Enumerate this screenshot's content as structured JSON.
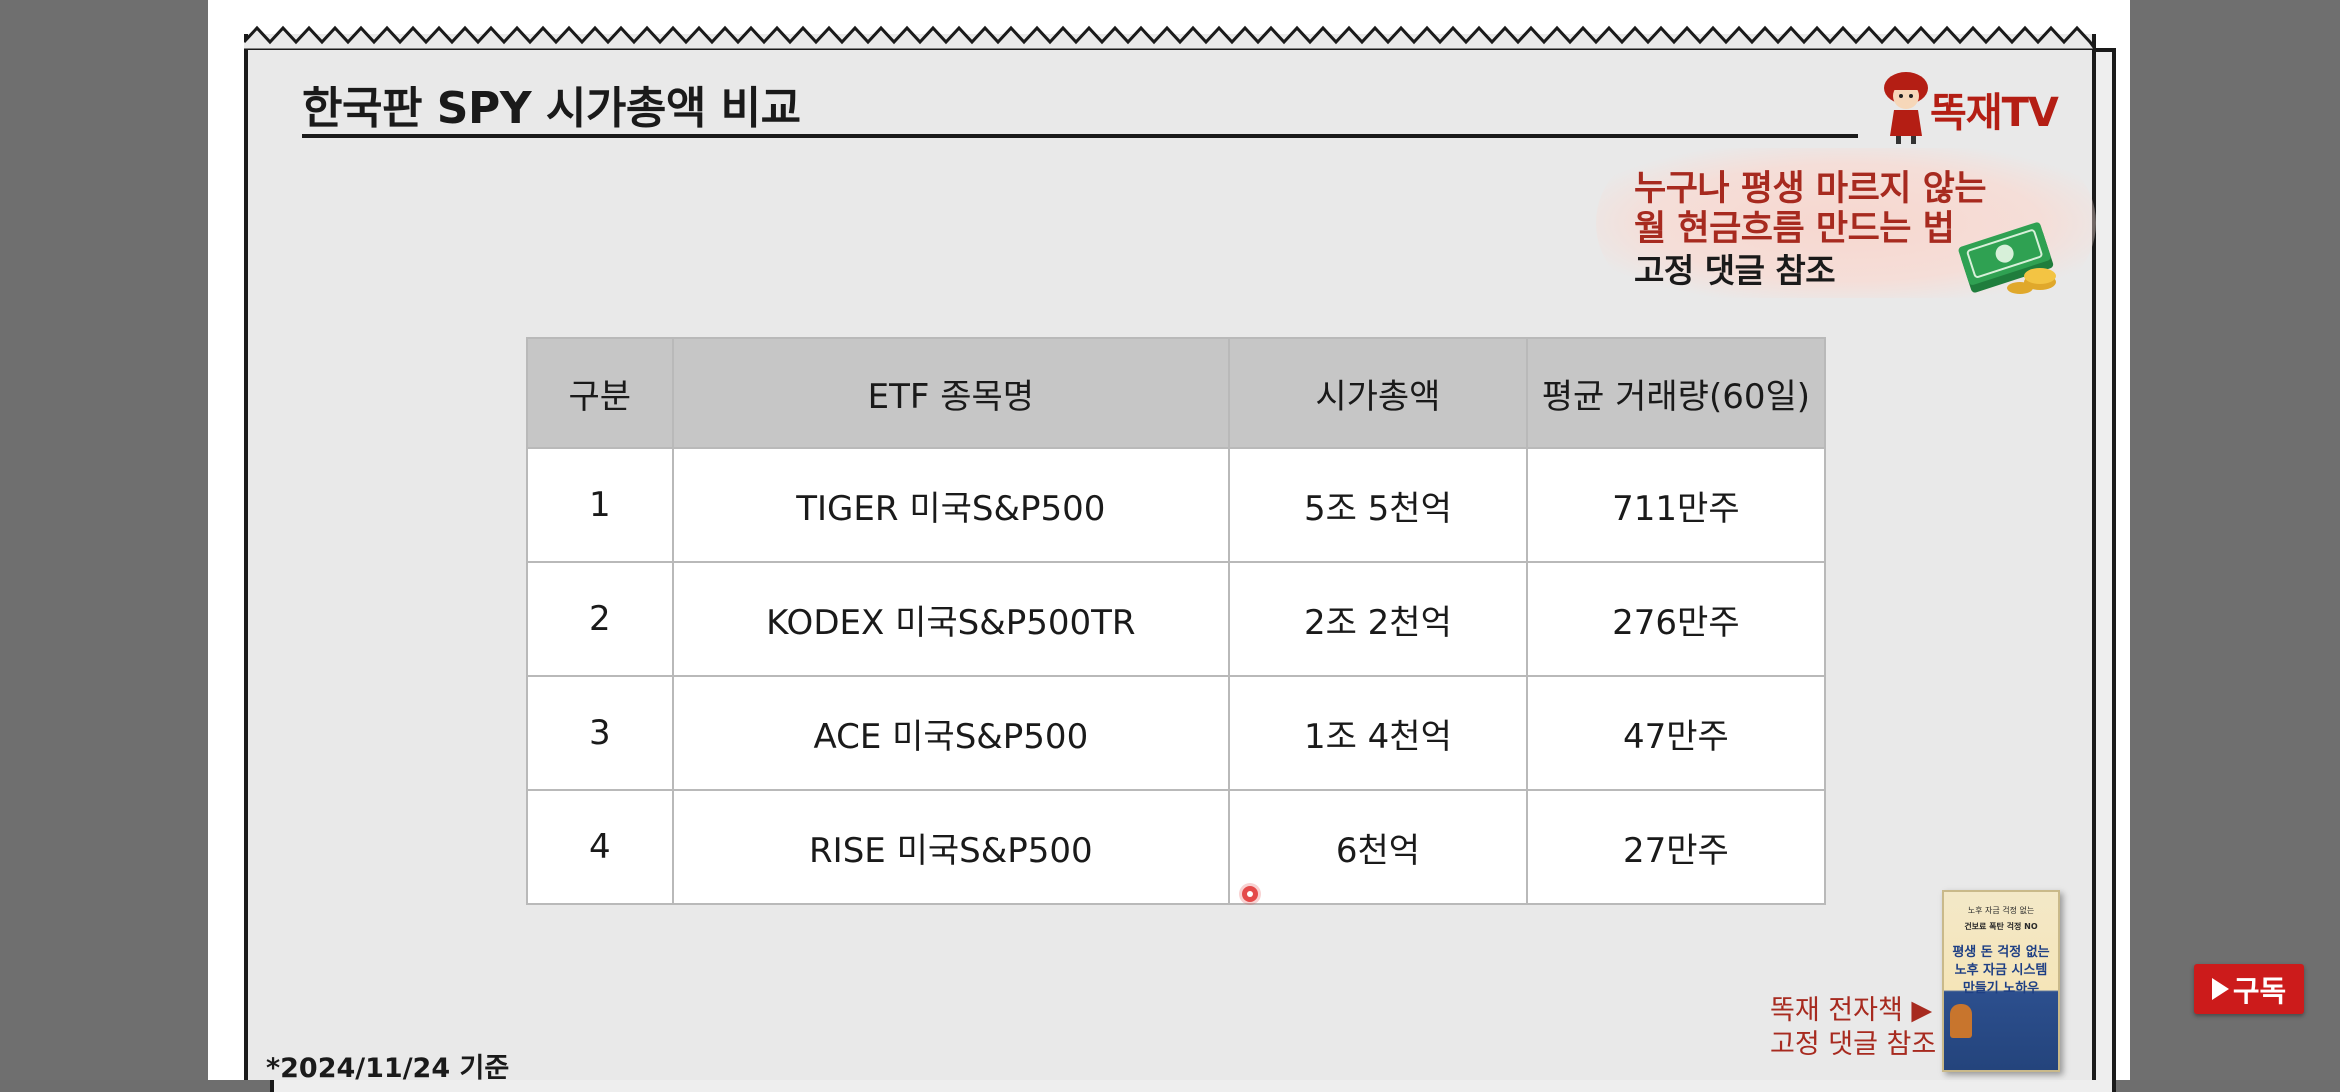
{
  "slide": {
    "title": "한국판 SPY 시가총액 비교",
    "logo_text": "똑재TV",
    "promo": {
      "line1": "누구나 평생 마르지 않는",
      "line2": "월 현금흐름 만드는 법",
      "line3": "고정 댓글 참조"
    },
    "table": {
      "headers": [
        "구분",
        "ETF 종목명",
        "시가총액",
        "평균 거래량(60일)"
      ],
      "rows": [
        [
          "1",
          "TIGER 미국S&P500",
          "5조 5천억",
          "711만주"
        ],
        [
          "2",
          "KODEX 미국S&P500TR",
          "2조 2천억",
          "276만주"
        ],
        [
          "3",
          "ACE 미국S&P500",
          "1조 4천억",
          "47만주"
        ],
        [
          "4",
          "RISE 미국S&P500",
          "6천억",
          "27만주"
        ]
      ]
    },
    "book_promo": {
      "line1": "똑재 전자책 ▶",
      "line2": "고정 댓글 참조",
      "cover_top": "노후 자금 걱정 없는",
      "cover_sub": "건보료 폭탄 걱정 NO",
      "cover_title1": "평생 돈 걱정 없는",
      "cover_title2": "노후 자금 시스템",
      "cover_title3": "만들기 노하우"
    },
    "footnote": "*2024/11/24 기준"
  },
  "overlay": {
    "subscribe_label": "구독"
  },
  "colors": {
    "accent_red": "#a72a1f",
    "logo_red": "#b41e14",
    "subscribe_red": "#cc1b1b",
    "table_header": "#c6c6c6",
    "paper": "#e9e9e9"
  },
  "icons": {
    "logo": "character-mascot-icon",
    "money": "money-stack-icon",
    "subscribe": "play-icon"
  }
}
